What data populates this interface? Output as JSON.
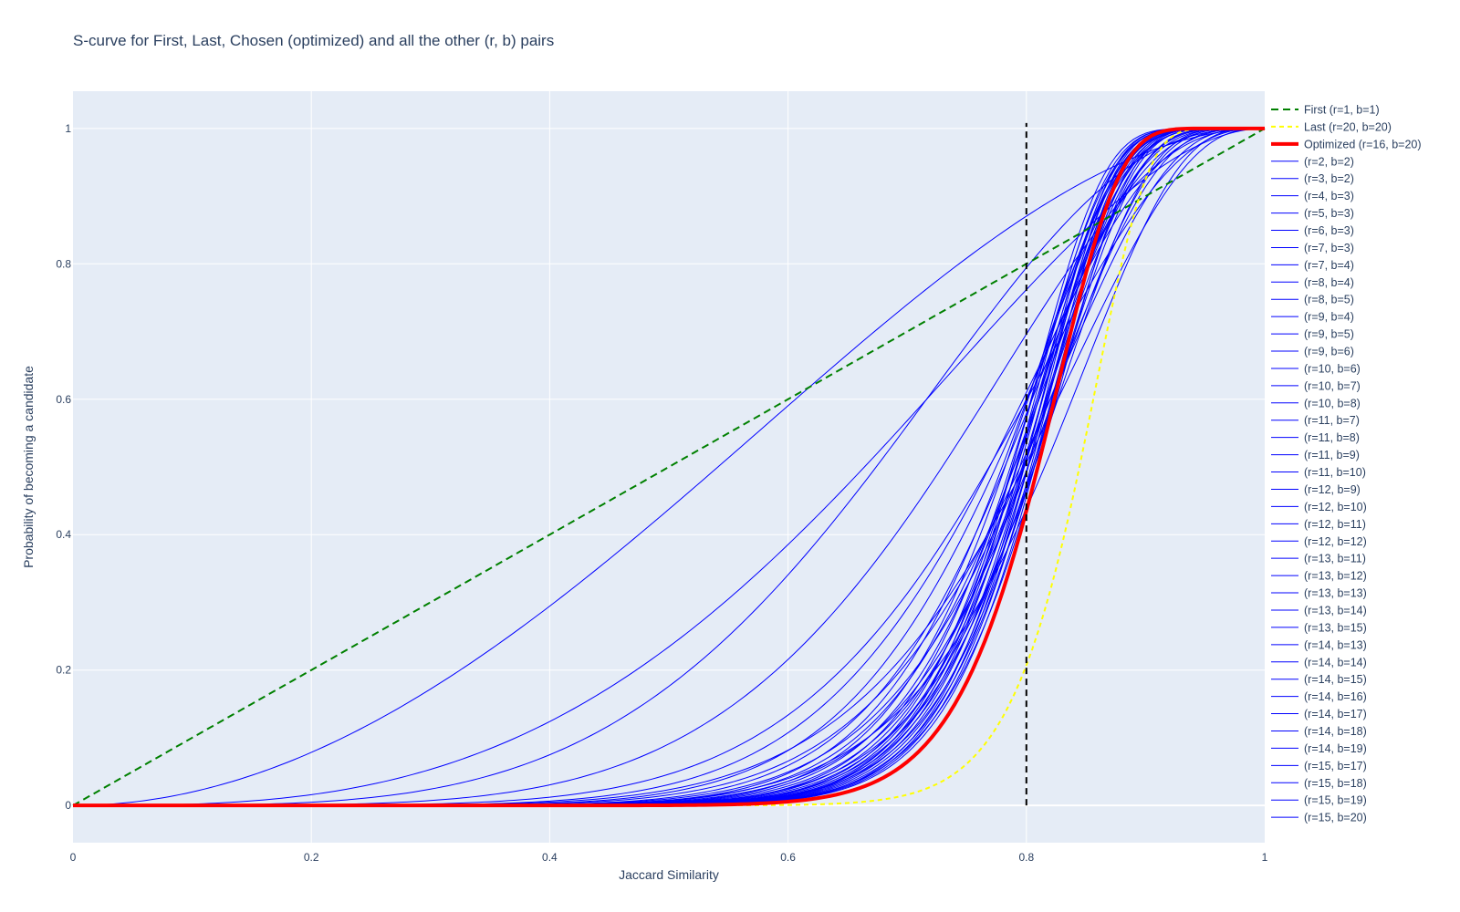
{
  "chart_data": {
    "type": "line",
    "title": "S-curve for First, Last, Chosen (optimized) and all the other (r, b) pairs",
    "xlabel": "Jaccard Similarity",
    "ylabel": "Probability of becoming a candidate",
    "xlim": [
      0,
      1
    ],
    "ylim": [
      -0.055,
      1.055
    ],
    "x_ticks": [
      0,
      0.2,
      0.4,
      0.6,
      0.8,
      1
    ],
    "x_tick_labels": [
      "0",
      "0.2",
      "0.4",
      "0.6",
      "0.8",
      "1"
    ],
    "y_ticks": [
      0,
      0.2,
      0.4,
      0.6,
      0.8,
      1
    ],
    "y_tick_labels": [
      "0",
      "0.2",
      "0.4",
      "0.6",
      "0.8",
      "1"
    ],
    "grid": true,
    "legend_position": "right",
    "colors": {
      "plot_bg": "#e5ecf6",
      "grid": "#ffffff",
      "first": "#008000",
      "last": "#ffff00",
      "optimized": "#ff0000",
      "pairs": "#0000ff",
      "threshold": "#000000"
    },
    "threshold": {
      "x": 0.8,
      "y_range": [
        0,
        1
      ]
    },
    "series": [
      {
        "name": "First (r=1, b=1)",
        "r": 1,
        "b": 1,
        "style": "first"
      },
      {
        "name": "Last (r=20, b=20)",
        "r": 20,
        "b": 20,
        "style": "last"
      },
      {
        "name": "Optimized (r=16, b=20)",
        "r": 16,
        "b": 20,
        "style": "optimized"
      },
      {
        "name": "(r=2, b=2)",
        "r": 2,
        "b": 2,
        "style": "pairs"
      },
      {
        "name": "(r=3, b=2)",
        "r": 3,
        "b": 2,
        "style": "pairs"
      },
      {
        "name": "(r=4, b=3)",
        "r": 4,
        "b": 3,
        "style": "pairs"
      },
      {
        "name": "(r=5, b=3)",
        "r": 5,
        "b": 3,
        "style": "pairs"
      },
      {
        "name": "(r=6, b=3)",
        "r": 6,
        "b": 3,
        "style": "pairs"
      },
      {
        "name": "(r=7, b=3)",
        "r": 7,
        "b": 3,
        "style": "pairs"
      },
      {
        "name": "(r=7, b=4)",
        "r": 7,
        "b": 4,
        "style": "pairs"
      },
      {
        "name": "(r=8, b=4)",
        "r": 8,
        "b": 4,
        "style": "pairs"
      },
      {
        "name": "(r=8, b=5)",
        "r": 8,
        "b": 5,
        "style": "pairs"
      },
      {
        "name": "(r=9, b=4)",
        "r": 9,
        "b": 4,
        "style": "pairs"
      },
      {
        "name": "(r=9, b=5)",
        "r": 9,
        "b": 5,
        "style": "pairs"
      },
      {
        "name": "(r=9, b=6)",
        "r": 9,
        "b": 6,
        "style": "pairs"
      },
      {
        "name": "(r=10, b=6)",
        "r": 10,
        "b": 6,
        "style": "pairs"
      },
      {
        "name": "(r=10, b=7)",
        "r": 10,
        "b": 7,
        "style": "pairs"
      },
      {
        "name": "(r=10, b=8)",
        "r": 10,
        "b": 8,
        "style": "pairs"
      },
      {
        "name": "(r=11, b=7)",
        "r": 11,
        "b": 7,
        "style": "pairs"
      },
      {
        "name": "(r=11, b=8)",
        "r": 11,
        "b": 8,
        "style": "pairs"
      },
      {
        "name": "(r=11, b=9)",
        "r": 11,
        "b": 9,
        "style": "pairs"
      },
      {
        "name": "(r=11, b=10)",
        "r": 11,
        "b": 10,
        "style": "pairs"
      },
      {
        "name": "(r=12, b=9)",
        "r": 12,
        "b": 9,
        "style": "pairs"
      },
      {
        "name": "(r=12, b=10)",
        "r": 12,
        "b": 10,
        "style": "pairs"
      },
      {
        "name": "(r=12, b=11)",
        "r": 12,
        "b": 11,
        "style": "pairs"
      },
      {
        "name": "(r=12, b=12)",
        "r": 12,
        "b": 12,
        "style": "pairs"
      },
      {
        "name": "(r=13, b=11)",
        "r": 13,
        "b": 11,
        "style": "pairs"
      },
      {
        "name": "(r=13, b=12)",
        "r": 13,
        "b": 12,
        "style": "pairs"
      },
      {
        "name": "(r=13, b=13)",
        "r": 13,
        "b": 13,
        "style": "pairs"
      },
      {
        "name": "(r=13, b=14)",
        "r": 13,
        "b": 14,
        "style": "pairs"
      },
      {
        "name": "(r=13, b=15)",
        "r": 13,
        "b": 15,
        "style": "pairs"
      },
      {
        "name": "(r=14, b=13)",
        "r": 14,
        "b": 13,
        "style": "pairs"
      },
      {
        "name": "(r=14, b=14)",
        "r": 14,
        "b": 14,
        "style": "pairs"
      },
      {
        "name": "(r=14, b=15)",
        "r": 14,
        "b": 15,
        "style": "pairs"
      },
      {
        "name": "(r=14, b=16)",
        "r": 14,
        "b": 16,
        "style": "pairs"
      },
      {
        "name": "(r=14, b=17)",
        "r": 14,
        "b": 17,
        "style": "pairs"
      },
      {
        "name": "(r=14, b=18)",
        "r": 14,
        "b": 18,
        "style": "pairs"
      },
      {
        "name": "(r=14, b=19)",
        "r": 14,
        "b": 19,
        "style": "pairs"
      },
      {
        "name": "(r=15, b=17)",
        "r": 15,
        "b": 17,
        "style": "pairs"
      },
      {
        "name": "(r=15, b=18)",
        "r": 15,
        "b": 18,
        "style": "pairs"
      },
      {
        "name": "(r=15, b=19)",
        "r": 15,
        "b": 19,
        "style": "pairs"
      },
      {
        "name": "(r=15, b=20)",
        "r": 15,
        "b": 20,
        "style": "pairs"
      }
    ]
  }
}
